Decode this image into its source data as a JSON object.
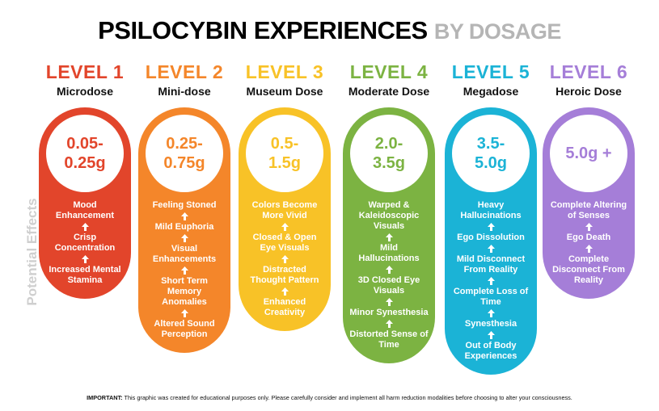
{
  "header": {
    "title": "PSILOCYBIN EXPERIENCES",
    "subtitle": "BY DOSAGE"
  },
  "side_label": "Potential Effects",
  "levels": [
    {
      "level": "LEVEL 1",
      "name": "Microdose",
      "color": "#e2452b",
      "dose": [
        "0.05-",
        "0.25g"
      ],
      "effects": [
        "Mood Enhancement",
        "Crisp Concentration",
        "Increased Mental Stamina"
      ]
    },
    {
      "level": "LEVEL 2",
      "name": "Mini-dose",
      "color": "#f4862a",
      "dose": [
        "0.25-",
        "0.75g"
      ],
      "effects": [
        "Feeling Stoned",
        "Mild Euphoria",
        "Visual Enhancements",
        "Short Term Memory Anomalies",
        "Altered Sound Perception"
      ]
    },
    {
      "level": "LEVEL 3",
      "name": "Museum Dose",
      "color": "#f8c227",
      "dose": [
        "0.5-",
        "1.5g"
      ],
      "effects": [
        "Colors Become More Vivid",
        "Closed & Open Eye Visuals",
        "Distracted Thought Pattern",
        "Enhanced Creativity"
      ]
    },
    {
      "level": "LEVEL 4",
      "name": "Moderate Dose",
      "color": "#7cb342",
      "dose": [
        "2.0-",
        "3.5g"
      ],
      "effects": [
        "Warped & Kaleidoscopic Visuals",
        "Mild Hallucinations",
        "3D Closed Eye Visuals",
        "Minor Synesthesia",
        "Distorted Sense of Time"
      ]
    },
    {
      "level": "LEVEL 5",
      "name": "Megadose",
      "color": "#1bb3d6",
      "dose": [
        "3.5-",
        "5.0g"
      ],
      "effects": [
        "Heavy Hallucinations",
        "Ego Dissolution",
        "Mild Disconnect From Reality",
        "Complete Loss of Time",
        "Synesthesia",
        "Out of Body Experiences"
      ]
    },
    {
      "level": "LEVEL 6",
      "name": "Heroic Dose",
      "color": "#a57ed8",
      "dose": [
        "5.0g +"
      ],
      "effects": [
        "Complete Altering of Senses",
        "Ego Death",
        "Complete Disconnect From Reality"
      ]
    }
  ],
  "footer": {
    "label": "IMPORTANT:",
    "text": "This graphic was created for educational purposes only. Please carefully consider and implement all harm reduction modalities before choosing to alter your consciousness."
  }
}
